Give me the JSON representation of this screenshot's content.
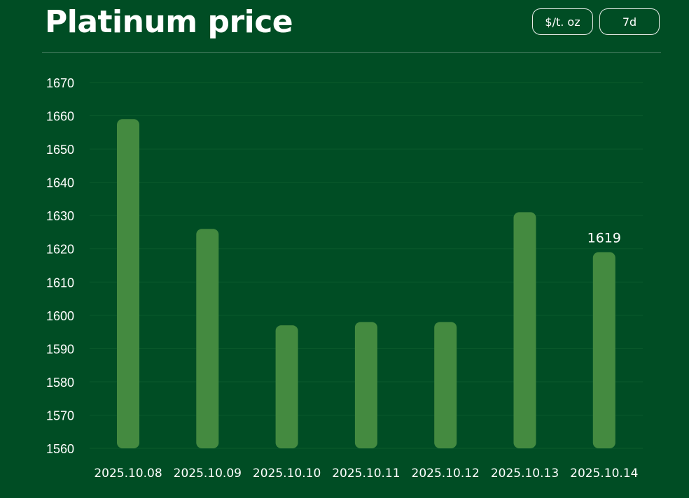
{
  "header": {
    "title": "Platinum price",
    "unit_label": "$/t. oz",
    "range_label": "7d"
  },
  "colors": {
    "background": "#004d24",
    "bar": "#448a40",
    "grid": "#0b5a2c",
    "text": "#ffffff"
  },
  "chart_data": {
    "type": "bar",
    "categories": [
      "2025.10.08",
      "2025.10.09",
      "2025.10.10",
      "2025.10.11",
      "2025.10.12",
      "2025.10.13",
      "2025.10.14"
    ],
    "values": [
      1659,
      1626,
      1597,
      1598,
      1598,
      1631,
      1619
    ],
    "highlight": {
      "category": "2025.10.14",
      "label": "1619"
    },
    "ylim": [
      1560,
      1670
    ],
    "yticks": [
      1560,
      1570,
      1580,
      1590,
      1600,
      1610,
      1620,
      1630,
      1640,
      1650,
      1660,
      1670
    ],
    "grid": true,
    "legend": "none"
  }
}
